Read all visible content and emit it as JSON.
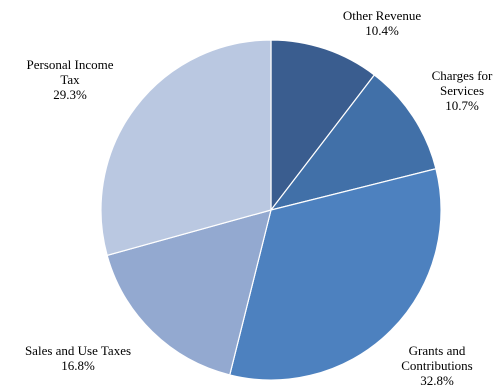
{
  "chart_data": {
    "type": "pie",
    "title": "",
    "start": "12 o'clock",
    "direction": "clockwise",
    "slices": [
      {
        "label_lines": [
          "Other Revenue"
        ],
        "percent_text": "10.4%",
        "value": 10.4,
        "color": "#3a5d8f"
      },
      {
        "label_lines": [
          "Charges for",
          "Services"
        ],
        "percent_text": "10.7%",
        "value": 10.7,
        "color": "#4170a8"
      },
      {
        "label_lines": [
          "Grants and",
          "Contributions"
        ],
        "percent_text": "32.8%",
        "value": 32.8,
        "color": "#4d81bf"
      },
      {
        "label_lines": [
          "Sales and Use Taxes"
        ],
        "percent_text": "16.8%",
        "value": 16.8,
        "color": "#93a9d0"
      },
      {
        "label_lines": [
          "Personal Income",
          "Tax"
        ],
        "percent_text": "29.3%",
        "value": 29.3,
        "color": "#bac8e1"
      }
    ]
  }
}
